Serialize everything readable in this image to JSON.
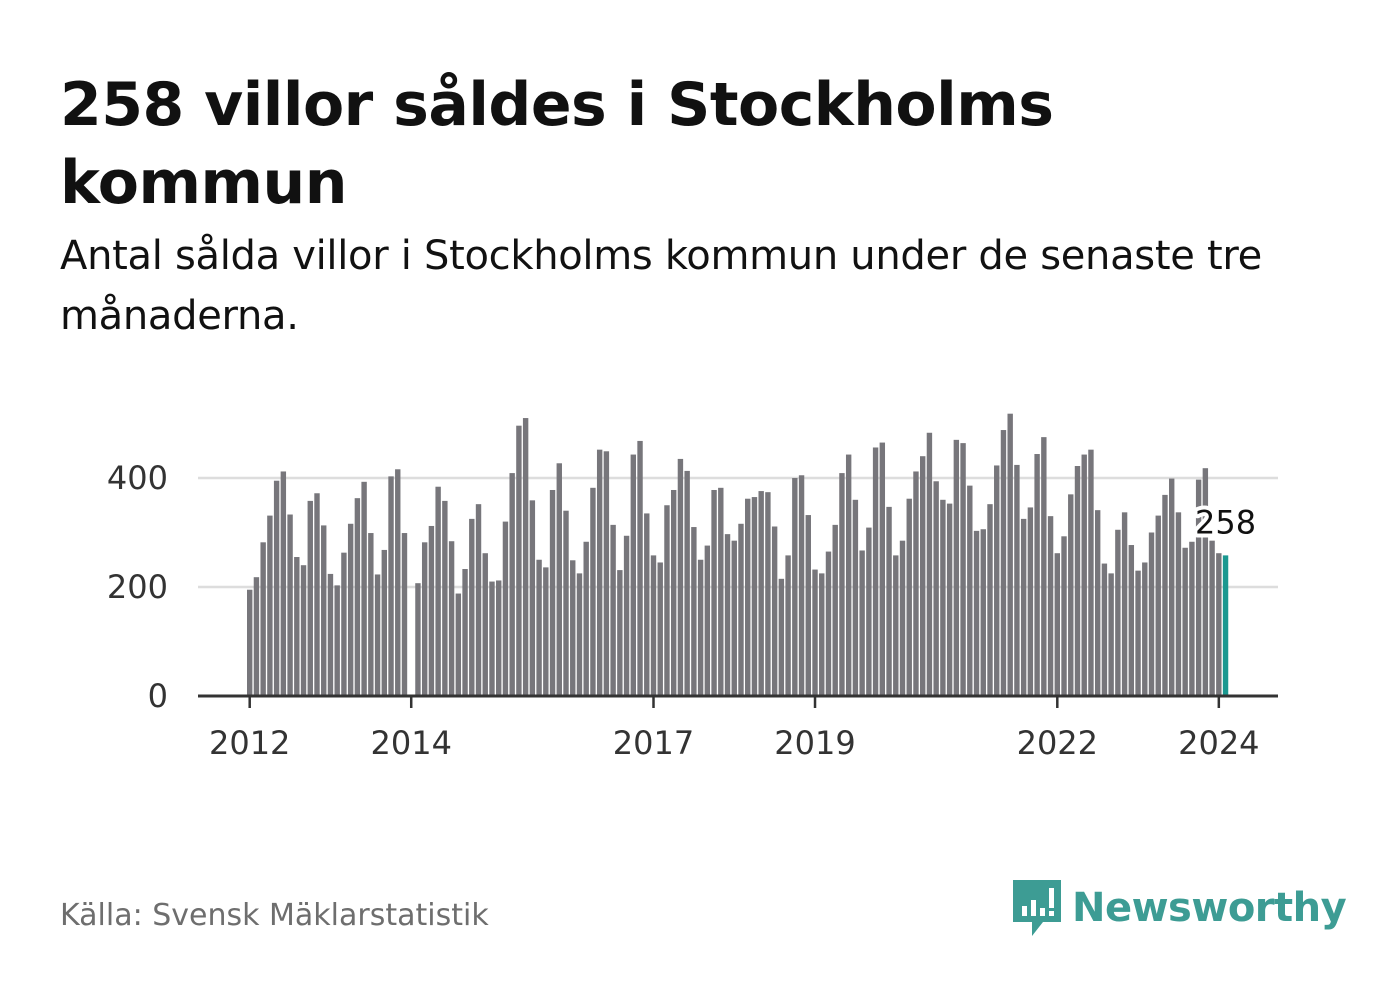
{
  "header": {
    "title": "258 villor såldes i Stockholms kommun",
    "subtitle": "Antal sålda villor i Stockholms kommun under de senaste tre månaderna."
  },
  "footer": {
    "source": "Källa: Svensk Mäklarstatistik",
    "brand": "Newsworthy",
    "brand_icon": "newsworthy-logo-icon"
  },
  "colors": {
    "bar": "#77767b",
    "highlight": "#1a9890",
    "grid": "#dddddd",
    "axis": "#333333",
    "brand": "#3d9c94"
  },
  "chart_data": {
    "type": "bar",
    "title": "258 villor såldes i Stockholms kommun",
    "xlabel": "",
    "ylabel": "",
    "ylim": [
      0,
      520
    ],
    "yticks": [
      0,
      200,
      400
    ],
    "grid": true,
    "x_start": "2012-01",
    "xticks": [
      {
        "label": "2012",
        "index": 0
      },
      {
        "label": "2014",
        "index": 24
      },
      {
        "label": "2017",
        "index": 60
      },
      {
        "label": "2019",
        "index": 84
      },
      {
        "label": "2022",
        "index": 120
      },
      {
        "label": "2024",
        "index": 144
      }
    ],
    "series": [
      {
        "name": "Antal sålda villor (rullande tre månader)",
        "values": [
          195,
          218,
          282,
          331,
          395,
          412,
          333,
          255,
          240,
          358,
          372,
          313,
          224,
          203,
          263,
          316,
          363,
          393,
          299,
          223,
          268,
          403,
          416,
          299,
          null,
          207,
          282,
          312,
          384,
          358,
          284,
          188,
          233,
          325,
          352,
          262,
          210,
          212,
          320,
          409,
          496,
          510,
          359,
          250,
          236,
          378,
          427,
          340,
          249,
          225,
          283,
          382,
          452,
          449,
          314,
          231,
          294,
          443,
          468,
          335,
          258,
          245,
          350,
          378,
          435,
          413,
          310,
          250,
          276,
          378,
          382,
          297,
          285,
          316,
          362,
          365,
          376,
          374,
          311,
          215,
          258,
          400,
          405,
          332,
          232,
          225,
          265,
          314,
          409,
          443,
          360,
          267,
          309,
          456,
          465,
          347,
          258,
          285,
          362,
          412,
          440,
          483,
          394,
          360,
          353,
          470,
          464,
          386,
          303,
          306,
          352,
          423,
          488,
          518,
          424,
          325,
          346,
          444,
          475,
          330,
          262,
          293,
          370,
          422,
          443,
          452,
          341,
          243,
          225,
          305,
          337,
          277,
          230,
          245,
          300,
          331,
          369,
          399,
          337,
          272,
          283,
          397,
          418,
          285,
          262,
          258
        ]
      }
    ],
    "highlight": {
      "index": 145,
      "value": 258,
      "label": "258"
    }
  }
}
